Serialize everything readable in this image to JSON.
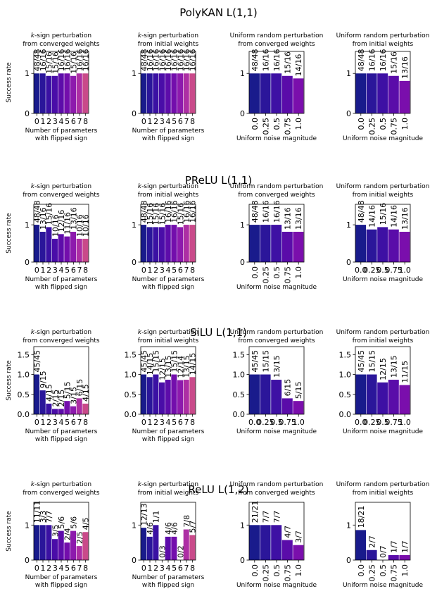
{
  "sections": [
    {
      "title": "PolyKAN L(1,1)",
      "ylabel": "Success rate",
      "panels": [
        {
          "title_l1_italic": "k",
          "title_l1": "-sign perturbation",
          "title_l2": "from converged weights"
        },
        {
          "title_l1_italic": "k",
          "title_l1": "-sign perturbation",
          "title_l2": "from initial weights"
        },
        {
          "title_l1_italic": "",
          "title_l1": "Uniform random perturbation",
          "title_l2": "from converged weights"
        },
        {
          "title_l1_italic": "",
          "title_l1": "Uniform random perturbation",
          "title_l2": "from initial weights"
        }
      ]
    },
    {
      "title": "PReLU L(1,1)",
      "ylabel": "Success rate",
      "panels": [
        {
          "title_l1_italic": "k",
          "title_l1": "-sign perturbation",
          "title_l2": "from converged weights"
        },
        {
          "title_l1_italic": "k",
          "title_l1": "-sign perturbation",
          "title_l2": "from initial weights"
        },
        {
          "title_l1_italic": "",
          "title_l1": "Uniform random perturbation",
          "title_l2": "from converged weights"
        },
        {
          "title_l1_italic": "",
          "title_l1": "Uniform random perturbation",
          "title_l2": "from initial weights"
        }
      ]
    },
    {
      "title": "SiLU L(1,1)",
      "ylabel": "Success rate",
      "panels": [
        {
          "title_l1_italic": "k",
          "title_l1": "-sign perturbation",
          "title_l2": "from converged weights"
        },
        {
          "title_l1_italic": "k",
          "title_l1": "-sign perturbation",
          "title_l2": "from initial weights"
        },
        {
          "title_l1_italic": "",
          "title_l1": "Uniform random perturbation",
          "title_l2": "from converged weights"
        },
        {
          "title_l1_italic": "",
          "title_l1": "Uniform random perturbation",
          "title_l2": "from initial weights"
        }
      ]
    },
    {
      "title": "ReLU L(1,2)",
      "ylabel": "Success rate",
      "panels": [
        {
          "title_l1_italic": "k",
          "title_l1": "-sign perturbation",
          "title_l2": "from converged weights"
        },
        {
          "title_l1_italic": "k",
          "title_l1": "-sign perturbation",
          "title_l2": "from initial weights"
        },
        {
          "title_l1_italic": "",
          "title_l1": "Uniform random perturbation",
          "title_l2": "from converged weights"
        },
        {
          "title_l1_italic": "",
          "title_l1": "Uniform random perturbation",
          "title_l2": "from initial weights"
        }
      ]
    }
  ],
  "xlabels": {
    "ksign": [
      "Number of parameters",
      "with flipped sign"
    ],
    "uniform": "Uniform noise magnitude"
  },
  "colors": {
    "k9": [
      "#191b8c",
      "#2a169a",
      "#3a11a3",
      "#4a0da8",
      "#5d0caa",
      "#730eac",
      "#8d1aad",
      "#ad2fa4",
      "#c94a8a"
    ],
    "u5": [
      "#191b8c",
      "#2b169a",
      "#3e10a4",
      "#5a0ca9",
      "#7a0eac"
    ]
  },
  "chart_data": [
    {
      "type": "bar",
      "section": "PolyKAN L(1,1)",
      "title": "k-sign perturbation from converged weights",
      "xlabel": "Number of parameters with flipped sign",
      "ylabel": "Success rate",
      "ylim": [
        0,
        1.55
      ],
      "yticks": [
        "0",
        "1"
      ],
      "categories": [
        "0",
        "1",
        "2",
        "3",
        "4",
        "5",
        "6",
        "7",
        "8"
      ],
      "values": [
        1.0,
        1.0,
        0.9375,
        0.9375,
        1.0,
        1.0,
        0.9375,
        1.0,
        1.0
      ],
      "labels": [
        "48/48",
        "16/16",
        "15/16",
        "15/16",
        "16/16",
        "16/16",
        "15/16",
        "16/16",
        "16/16"
      ],
      "xtick_rot": 0,
      "color_set": "k9"
    },
    {
      "type": "bar",
      "section": "PolyKAN L(1,1)",
      "title": "k-sign perturbation from initial weights",
      "xlabel": "Number of parameters with flipped sign",
      "ylabel": "",
      "ylim": [
        0,
        1.55
      ],
      "yticks": [
        "0",
        "1"
      ],
      "categories": [
        "0",
        "1",
        "2",
        "3",
        "4",
        "5",
        "6",
        "7",
        "8"
      ],
      "values": [
        1.0,
        1.0,
        1.0,
        1.0,
        1.0,
        1.0,
        1.0,
        1.0,
        1.0
      ],
      "labels": [
        "48/48",
        "16/16",
        "16/16",
        "16/16",
        "16/16",
        "16/16",
        "16/16",
        "16/16",
        "16/16"
      ],
      "xtick_rot": 0,
      "color_set": "k9"
    },
    {
      "type": "bar",
      "section": "PolyKAN L(1,1)",
      "title": "Uniform random perturbation from converged weights",
      "xlabel": "Uniform noise magnitude",
      "ylabel": "",
      "ylim": [
        0,
        1.55
      ],
      "yticks": [
        "0",
        "1"
      ],
      "categories": [
        "0.0",
        "0.25",
        "0.5",
        "0.75",
        "1.0"
      ],
      "values": [
        1.0,
        1.0,
        1.0,
        0.9375,
        0.875
      ],
      "labels": [
        "48/48",
        "16/16",
        "16/16",
        "15/16",
        "14/16"
      ],
      "xtick_rot": 90,
      "color_set": "u5"
    },
    {
      "type": "bar",
      "section": "PolyKAN L(1,1)",
      "title": "Uniform random perturbation from initial weights",
      "xlabel": "Uniform noise magnitude",
      "ylabel": "",
      "ylim": [
        0,
        1.55
      ],
      "yticks": [
        "0",
        "1"
      ],
      "categories": [
        "0.0",
        "0.25",
        "0.5",
        "0.75",
        "1.0"
      ],
      "values": [
        1.0,
        1.0,
        1.0,
        0.9375,
        0.8125
      ],
      "labels": [
        "48/48",
        "16/16",
        "16/16",
        "15/16",
        "13/16"
      ],
      "xtick_rot": 90,
      "color_set": "u5"
    },
    {
      "type": "bar",
      "section": "PReLU L(1,1)",
      "title": "k-sign perturbation from converged weights",
      "xlabel": "Number of parameters with flipped sign",
      "ylabel": "Success rate",
      "ylim": [
        0,
        1.55
      ],
      "yticks": [
        "0",
        "1"
      ],
      "categories": [
        "0",
        "1",
        "2",
        "3",
        "4",
        "5",
        "6",
        "7",
        "8"
      ],
      "values": [
        1.0,
        0.8125,
        0.9375,
        0.625,
        0.75,
        0.6875,
        0.8125,
        0.625,
        0.625
      ],
      "labels": [
        "48/48",
        "13/16",
        "15/16",
        "10/16",
        "12/16",
        "11/16",
        "13/16",
        "10/16",
        "10/16"
      ],
      "xtick_rot": 0,
      "color_set": "k9"
    },
    {
      "type": "bar",
      "section": "PReLU L(1,1)",
      "title": "k-sign perturbation from initial weights",
      "xlabel": "Number of parameters with flipped sign",
      "ylabel": "",
      "ylim": [
        0,
        1.55
      ],
      "yticks": [
        "0",
        "1"
      ],
      "categories": [
        "0",
        "1",
        "2",
        "3",
        "4",
        "5",
        "6",
        "7",
        "8"
      ],
      "values": [
        1.0,
        0.9375,
        0.9375,
        0.9375,
        1.0,
        1.0,
        0.9375,
        1.0,
        1.0
      ],
      "labels": [
        "48/48",
        "15/16",
        "15/16",
        "15/16",
        "16/16",
        "16/16",
        "15/16",
        "16/16",
        "16/16"
      ],
      "xtick_rot": 0,
      "color_set": "k9"
    },
    {
      "type": "bar",
      "section": "PReLU L(1,1)",
      "title": "Uniform random perturbation from converged weights",
      "xlabel": "Uniform noise magnitude",
      "ylabel": "",
      "ylim": [
        0,
        1.55
      ],
      "yticks": [
        "0",
        "1"
      ],
      "categories": [
        "0.0",
        "0.25",
        "0.5",
        "0.75",
        "1.0"
      ],
      "values": [
        1.0,
        1.0,
        1.0,
        0.8125,
        0.8125
      ],
      "labels": [
        "48/48",
        "16/16",
        "16/16",
        "13/16",
        "13/16"
      ],
      "xtick_rot": 90,
      "color_set": "u5"
    },
    {
      "type": "bar",
      "section": "PReLU L(1,1)",
      "title": "Uniform random perturbation from initial weights",
      "xlabel": "Uniform noise magnitude",
      "ylabel": "",
      "ylim": [
        0,
        1.55
      ],
      "yticks": [
        "0",
        "1"
      ],
      "categories": [
        "0.0",
        "0.25",
        "0.5",
        "0.75",
        "1.0"
      ],
      "values": [
        1.0,
        0.875,
        0.9375,
        0.875,
        0.8125
      ],
      "labels": [
        "48/48",
        "14/16",
        "15/16",
        "14/16",
        "13/16"
      ],
      "xtick_rot": 0,
      "color_set": "u5"
    },
    {
      "type": "bar",
      "section": "SiLU L(1,1)",
      "title": "k-sign perturbation from converged weights",
      "xlabel": "Number of parameters with flipped sign",
      "ylabel": "Success rate",
      "ylim": [
        0,
        1.7
      ],
      "yticks": [
        "0.0",
        "0.5",
        "1.0",
        "1.5"
      ],
      "categories": [
        "0",
        "1",
        "2",
        "3",
        "4",
        "5",
        "6",
        "7",
        "8"
      ],
      "values": [
        1.0,
        0.6,
        0.2667,
        0.1333,
        0.1333,
        0.3333,
        0.2,
        0.4,
        0.2667
      ],
      "labels": [
        "45/45",
        "9/15",
        "4/15",
        "2/15",
        "2/15",
        "5/15",
        "3/15",
        "6/15",
        "4/15"
      ],
      "xtick_rot": 0,
      "color_set": "k9"
    },
    {
      "type": "bar",
      "section": "SiLU L(1,1)",
      "title": "k-sign perturbation from initial weights",
      "xlabel": "Number of parameters with flipped sign",
      "ylabel": "",
      "ylim": [
        0,
        1.7
      ],
      "yticks": [
        "0.0",
        "0.5",
        "1.0",
        "1.5"
      ],
      "categories": [
        "0",
        "1",
        "2",
        "3",
        "4",
        "5",
        "6",
        "7",
        "8"
      ],
      "values": [
        1.0,
        0.9333,
        1.0,
        0.8,
        0.8667,
        1.0,
        0.8571,
        0.8667,
        0.9333
      ],
      "labels": [
        "45/45",
        "14/15",
        "15/15",
        "12/15",
        "13/15",
        "15/15",
        "12/14",
        "13/15",
        "14/15"
      ],
      "xtick_rot": 0,
      "color_set": "k9"
    },
    {
      "type": "bar",
      "section": "SiLU L(1,1)",
      "title": "Uniform random perturbation from converged weights",
      "xlabel": "",
      "ylabel": "",
      "ylim": [
        0,
        1.7
      ],
      "yticks": [
        "0.0",
        "0.5",
        "1.0",
        "1.5"
      ],
      "categories": [
        "0.0",
        "0.25",
        "0.5",
        "0.75",
        "1.0"
      ],
      "values": [
        1.0,
        1.0,
        0.8667,
        0.4,
        0.3333
      ],
      "labels": [
        "45/45",
        "15/15",
        "13/15",
        "6/15",
        "5/15"
      ],
      "xtick_rot": 0,
      "color_set": "u5"
    },
    {
      "type": "bar",
      "section": "SiLU L(1,1)",
      "title": "Uniform random perturbation from initial weights",
      "xlabel": "",
      "ylabel": "",
      "ylim": [
        0,
        1.7
      ],
      "yticks": [
        "0.0",
        "0.5",
        "1.0",
        "1.5"
      ],
      "categories": [
        "0.0",
        "0.25",
        "0.5",
        "0.75",
        "1.0"
      ],
      "values": [
        1.0,
        1.0,
        0.8,
        0.8667,
        0.7333
      ],
      "labels": [
        "45/45",
        "15/15",
        "12/15",
        "13/15",
        "11/15"
      ],
      "xtick_rot": 0,
      "color_set": "u5"
    },
    {
      "type": "bar",
      "section": "ReLU L(1,2)",
      "title": "k-sign perturbation from converged weights",
      "xlabel": "Number of parameters with flipped sign",
      "ylabel": "Success rate",
      "ylim": [
        0,
        1.65
      ],
      "yticks": [
        "0",
        "1"
      ],
      "categories": [
        "0",
        "1",
        "2",
        "3",
        "4",
        "5",
        "6",
        "7",
        "8"
      ],
      "values": [
        1.0,
        1.0,
        1.0,
        0.6,
        0.8333,
        0.5,
        0.8333,
        0.4,
        0.8
      ],
      "labels": [
        "11/11",
        "3/3",
        "7/7",
        "3/5",
        "5/6",
        "2/4",
        "5/6",
        "2/5",
        "4/5"
      ],
      "xtick_rot": 0,
      "color_set": "k9"
    },
    {
      "type": "bar",
      "section": "ReLU L(1,2)",
      "title": "k-sign perturbation from initial weights",
      "xlabel": "Number of parameters with flipped sign",
      "ylabel": "",
      "ylim": [
        0,
        1.65
      ],
      "yticks": [
        "0",
        "1"
      ],
      "categories": [
        "0",
        "1",
        "2",
        "3",
        "4",
        "5",
        "6",
        "7",
        "8"
      ],
      "values": [
        0.9231,
        0.6667,
        1.0,
        0.0,
        0.6667,
        0.6667,
        0.0,
        0.875,
        0.7143
      ],
      "labels": [
        "12/13",
        "4/6",
        "1/1",
        "0/3",
        "4/6",
        "4/6",
        "0/2",
        "7/8",
        "5/7"
      ],
      "xtick_rot": 0,
      "color_set": "k9"
    },
    {
      "type": "bar",
      "section": "ReLU L(1,2)",
      "title": "Uniform random perturbation from converged weights",
      "xlabel": "Uniform noise magnitude",
      "ylabel": "",
      "ylim": [
        0,
        1.65
      ],
      "yticks": [
        "0",
        "1"
      ],
      "categories": [
        "0.0",
        "0.25",
        "0.5",
        "0.75",
        "1.0"
      ],
      "values": [
        1.0,
        1.0,
        1.0,
        0.5714,
        0.4286
      ],
      "labels": [
        "21/21",
        "7/7",
        "7/7",
        "4/7",
        "3/7"
      ],
      "xtick_rot": 90,
      "color_set": "u5"
    },
    {
      "type": "bar",
      "section": "ReLU L(1,2)",
      "title": "Uniform random perturbation from initial weights",
      "xlabel": "Uniform noise magnitude",
      "ylabel": "",
      "ylim": [
        0,
        1.65
      ],
      "yticks": [
        "0",
        "1"
      ],
      "categories": [
        "0.0",
        "0.25",
        "0.5",
        "0.75",
        "1.0"
      ],
      "values": [
        0.8571,
        0.2857,
        0.0,
        0.1429,
        0.1429
      ],
      "labels": [
        "18/21",
        "2/7",
        "0/7",
        "1/7",
        "1/7"
      ],
      "xtick_rot": 90,
      "color_set": "u5"
    }
  ]
}
